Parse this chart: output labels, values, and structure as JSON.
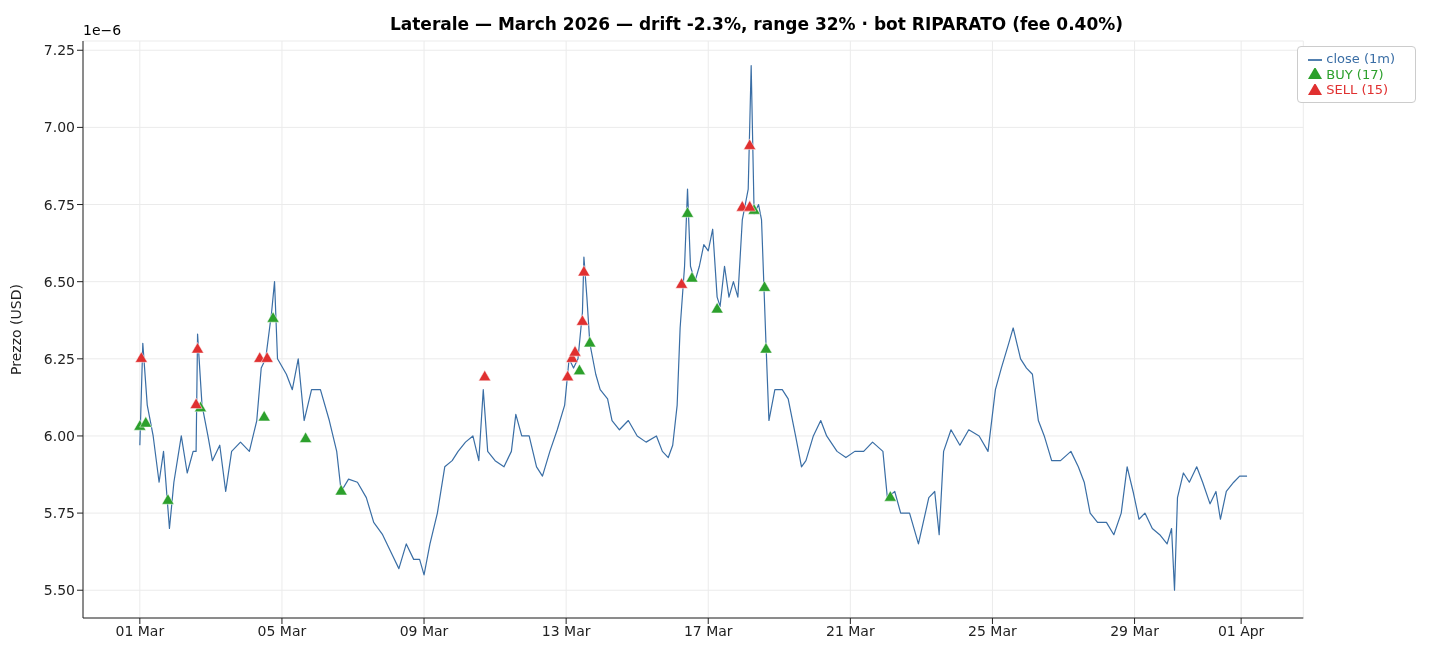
{
  "chart_data": {
    "type": "line",
    "title": "Laterale — March 2026 — drift -2.3%, range 32% · bot RIPARATO (fee 0.40%)",
    "ylabel": "Prezzo (USD)",
    "annotations": [
      "1e−6"
    ],
    "xlim": [
      "2026-02-27T09:36",
      "2026-04-02T18:00"
    ],
    "xticks": [
      {
        "value": "2026-03-01",
        "label": "01 Mar"
      },
      {
        "value": "2026-03-05",
        "label": "05 Mar"
      },
      {
        "value": "2026-03-09",
        "label": "09 Mar"
      },
      {
        "value": "2026-03-13",
        "label": "13 Mar"
      },
      {
        "value": "2026-03-17",
        "label": "17 Mar"
      },
      {
        "value": "2026-03-21",
        "label": "21 Mar"
      },
      {
        "value": "2026-03-25",
        "label": "25 Mar"
      },
      {
        "value": "2026-03-29",
        "label": "29 Mar"
      },
      {
        "value": "2026-04-01",
        "label": "01 Apr"
      }
    ],
    "ylim": [
      5.41,
      7.28
    ],
    "yticks": [
      {
        "value": 5.5,
        "label": "5.50"
      },
      {
        "value": 5.75,
        "label": "5.75"
      },
      {
        "value": 6,
        "label": "6.00"
      },
      {
        "value": 6.25,
        "label": "6.25"
      },
      {
        "value": 6.5,
        "label": "6.50"
      },
      {
        "value": 6.75,
        "label": "6.75"
      },
      {
        "value": 7,
        "label": "7.00"
      },
      {
        "value": 7.25,
        "label": "7.25"
      }
    ],
    "grid": true,
    "legend": "top right",
    "marker": "none",
    "series": [
      {
        "name": "close (1m)",
        "color": "#3a6ea5",
        "x": [
          "2026-03-01T00:00",
          "2026-03-01T02:00",
          "2026-03-01T05:00",
          "2026-03-01T09:00",
          "2026-03-01T13:00",
          "2026-03-01T16:00",
          "2026-03-01T20:00",
          "2026-03-01T23:00",
          "2026-03-02T04:00",
          "2026-03-02T08:00",
          "2026-03-02T12:00",
          "2026-03-02T14:00",
          "2026-03-02T15:00",
          "2026-03-02T18:00",
          "2026-03-02T22:00",
          "2026-03-03T01:00",
          "2026-03-03T06:00",
          "2026-03-03T10:00",
          "2026-03-03T14:00",
          "2026-03-03T20:00",
          "2026-03-04T02:00",
          "2026-03-04T07:00",
          "2026-03-04T10:00",
          "2026-03-04T13:00",
          "2026-03-04T17:00",
          "2026-03-04T19:00",
          "2026-03-04T21:00",
          "2026-03-05T03:00",
          "2026-03-05T07:00",
          "2026-03-05T11:00",
          "2026-03-05T15:00",
          "2026-03-05T20:00",
          "2026-03-06T02:00",
          "2026-03-06T08:00",
          "2026-03-06T13:00",
          "2026-03-06T16:00",
          "2026-03-06T21:00",
          "2026-03-07T03:00",
          "2026-03-07T09:00",
          "2026-03-07T14:00",
          "2026-03-07T20:00",
          "2026-03-08T02:00",
          "2026-03-08T07:00",
          "2026-03-08T12:00",
          "2026-03-08T17:00",
          "2026-03-08T21:00",
          "2026-03-09T00:00",
          "2026-03-09T04:00",
          "2026-03-09T09:00",
          "2026-03-09T14:00",
          "2026-03-09T19:00",
          "2026-03-09T23:00",
          "2026-03-10T04:00",
          "2026-03-10T09:00",
          "2026-03-10T13:00",
          "2026-03-10T16:00",
          "2026-03-10T19:00",
          "2026-03-11T00:00",
          "2026-03-11T06:00",
          "2026-03-11T11:00",
          "2026-03-11T14:00",
          "2026-03-11T18:00",
          "2026-03-11T23:00",
          "2026-03-12T04:00",
          "2026-03-12T08:00",
          "2026-03-12T13:00",
          "2026-03-12T18:00",
          "2026-03-12T23:00",
          "2026-03-13T02:00",
          "2026-03-13T05:00",
          "2026-03-13T08:00",
          "2026-03-13T11:00",
          "2026-03-13T12:00",
          "2026-03-13T14:00",
          "2026-03-13T16:00",
          "2026-03-13T20:00",
          "2026-03-13T23:00",
          "2026-03-14T04:00",
          "2026-03-14T07:00",
          "2026-03-14T12:00",
          "2026-03-14T18:00",
          "2026-03-15T00:00",
          "2026-03-15T06:00",
          "2026-03-15T13:00",
          "2026-03-15T17:00",
          "2026-03-15T21:00",
          "2026-03-16T00:00",
          "2026-03-16T03:00",
          "2026-03-16T05:00",
          "2026-03-16T08:00",
          "2026-03-16T10:00",
          "2026-03-16T12:00",
          "2026-03-16T15:00",
          "2026-03-16T18:00",
          "2026-03-16T21:00",
          "2026-03-17T00:00",
          "2026-03-17T03:00",
          "2026-03-17T06:00",
          "2026-03-17T08:00",
          "2026-03-17T11:00",
          "2026-03-17T14:00",
          "2026-03-17T17:00",
          "2026-03-17T20:00",
          "2026-03-17T23:00",
          "2026-03-18T01:00",
          "2026-03-18T03:00",
          "2026-03-18T05:00",
          "2026-03-18T07:00",
          "2026-03-18T10:00",
          "2026-03-18T12:00",
          "2026-03-18T15:00",
          "2026-03-18T17:00",
          "2026-03-18T21:00",
          "2026-03-19T02:00",
          "2026-03-19T06:00",
          "2026-03-19T11:00",
          "2026-03-19T15:00",
          "2026-03-19T18:00",
          "2026-03-19T23:00",
          "2026-03-20T04:00",
          "2026-03-20T08:00",
          "2026-03-20T15:00",
          "2026-03-20T21:00",
          "2026-03-21T03:00",
          "2026-03-21T09:00",
          "2026-03-21T15:00",
          "2026-03-21T22:00",
          "2026-03-22T01:00",
          "2026-03-22T06:00",
          "2026-03-22T10:00",
          "2026-03-22T16:00",
          "2026-03-22T22:00",
          "2026-03-23T05:00",
          "2026-03-23T09:00",
          "2026-03-23T12:00",
          "2026-03-23T15:00",
          "2026-03-23T20:00",
          "2026-03-24T02:00",
          "2026-03-24T08:00",
          "2026-03-24T15:00",
          "2026-03-24T21:00",
          "2026-03-25T02:00",
          "2026-03-25T06:00",
          "2026-03-25T11:00",
          "2026-03-25T14:00",
          "2026-03-25T19:00",
          "2026-03-25T23:00",
          "2026-03-26T03:00",
          "2026-03-26T07:00",
          "2026-03-26T11:00",
          "2026-03-26T16:00",
          "2026-03-26T22:00",
          "2026-03-27T05:00",
          "2026-03-27T10:00",
          "2026-03-27T14:00",
          "2026-03-27T18:00",
          "2026-03-27T23:00",
          "2026-03-28T05:00",
          "2026-03-28T10:00",
          "2026-03-28T15:00",
          "2026-03-28T19:00",
          "2026-03-28T23:00",
          "2026-03-29T03:00",
          "2026-03-29T07:00",
          "2026-03-29T12:00",
          "2026-03-29T17:00",
          "2026-03-29T22:00",
          "2026-03-30T01:00",
          "2026-03-30T03:00",
          "2026-03-30T05:00",
          "2026-03-30T09:00",
          "2026-03-30T13:00",
          "2026-03-30T18:00",
          "2026-03-30T22:00",
          "2026-03-31T03:00",
          "2026-03-31T07:00",
          "2026-03-31T10:00",
          "2026-03-31T14:00",
          "2026-03-31T19:00",
          "2026-03-31T23:00",
          "2026-04-01T04:00"
        ],
        "values": [
          5.97,
          6.3,
          6.1,
          6.0,
          5.85,
          5.95,
          5.7,
          5.85,
          6.0,
          5.88,
          5.95,
          5.95,
          6.33,
          6.1,
          6.0,
          5.92,
          5.97,
          5.82,
          5.95,
          5.98,
          5.95,
          6.05,
          6.22,
          6.25,
          6.4,
          6.5,
          6.25,
          6.2,
          6.15,
          6.25,
          6.05,
          6.15,
          6.15,
          6.05,
          5.95,
          5.82,
          5.86,
          5.85,
          5.8,
          5.72,
          5.68,
          5.62,
          5.57,
          5.65,
          5.6,
          5.6,
          5.55,
          5.65,
          5.75,
          5.9,
          5.92,
          5.95,
          5.98,
          6.0,
          5.92,
          6.15,
          5.95,
          5.92,
          5.9,
          5.95,
          6.07,
          6.0,
          6.0,
          5.9,
          5.87,
          5.95,
          6.02,
          6.1,
          6.25,
          6.22,
          6.25,
          6.4,
          6.58,
          6.45,
          6.3,
          6.2,
          6.15,
          6.12,
          6.05,
          6.02,
          6.05,
          6.0,
          5.98,
          6.0,
          5.95,
          5.93,
          5.97,
          6.1,
          6.35,
          6.55,
          6.8,
          6.55,
          6.5,
          6.55,
          6.62,
          6.6,
          6.67,
          6.45,
          6.42,
          6.55,
          6.45,
          6.5,
          6.45,
          6.7,
          6.75,
          6.8,
          7.2,
          6.72,
          6.75,
          6.7,
          6.3,
          6.05,
          6.15,
          6.15,
          6.12,
          6.0,
          5.9,
          5.92,
          6.0,
          6.05,
          6.0,
          5.95,
          5.93,
          5.95,
          5.95,
          5.98,
          5.95,
          5.8,
          5.82,
          5.75,
          5.75,
          5.65,
          5.8,
          5.82,
          5.68,
          5.95,
          6.02,
          5.97,
          6.02,
          6.0,
          5.95,
          6.15,
          6.22,
          6.3,
          6.35,
          6.25,
          6.22,
          6.2,
          6.05,
          6.0,
          5.92,
          5.92,
          5.95,
          5.9,
          5.85,
          5.75,
          5.72,
          5.72,
          5.68,
          5.75,
          5.9,
          5.82,
          5.73,
          5.75,
          5.7,
          5.68,
          5.65,
          5.7,
          5.5,
          5.8,
          5.88,
          5.85,
          5.9,
          5.85,
          5.78,
          5.82,
          5.73,
          5.82,
          5.85,
          5.87,
          5.87
        ]
      },
      {
        "name": "BUY (17)",
        "type": "scatter",
        "marker": "triangle",
        "color": "#2ca02c",
        "x": [
          "2026-03-01T00:00",
          "2026-03-01T04:00",
          "2026-03-01T19:00",
          "2026-03-02T17:00",
          "2026-03-04T12:00",
          "2026-03-04T18:00",
          "2026-03-05T16:00",
          "2026-03-06T16:00",
          "2026-03-13T09:00",
          "2026-03-13T16:00",
          "2026-03-16T10:00",
          "2026-03-16T13:00",
          "2026-03-17T06:00",
          "2026-03-18T07:00",
          "2026-03-18T14:00",
          "2026-03-18T15:00",
          "2026-03-22T03:00"
        ],
        "values": [
          6.03,
          6.04,
          5.79,
          6.09,
          6.06,
          6.38,
          5.99,
          5.82,
          6.21,
          6.3,
          6.72,
          6.51,
          6.41,
          6.73,
          6.48,
          6.28,
          5.8
        ]
      },
      {
        "name": "SELL (15)",
        "type": "scatter",
        "marker": "triangle",
        "color": "#e03030",
        "x": [
          "2026-03-01T01:00",
          "2026-03-02T14:00",
          "2026-03-02T15:00",
          "2026-03-04T09:00",
          "2026-03-04T14:00",
          "2026-03-10T17:00",
          "2026-03-13T01:00",
          "2026-03-13T04:00",
          "2026-03-13T06:00",
          "2026-03-13T11:00",
          "2026-03-13T12:00",
          "2026-03-16T06:00",
          "2026-03-17T23:00",
          "2026-03-18T04:00",
          "2026-03-18T04:00"
        ],
        "values": [
          6.25,
          6.1,
          6.28,
          6.25,
          6.25,
          6.19,
          6.19,
          6.25,
          6.27,
          6.37,
          6.53,
          6.49,
          6.74,
          6.74,
          6.94
        ]
      }
    ]
  }
}
